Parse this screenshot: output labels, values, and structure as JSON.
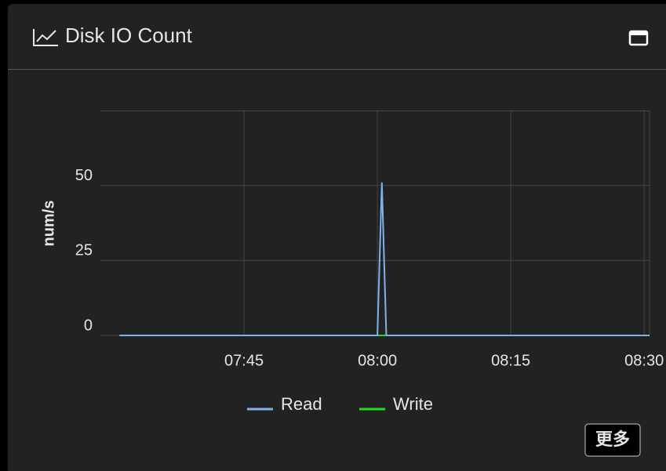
{
  "header": {
    "title": "Disk IO Count"
  },
  "button": {
    "label": "更多"
  },
  "chart_data": {
    "type": "line",
    "ylabel": "num/s",
    "x": [
      451,
      480,
      480.5,
      481,
      510.6
    ],
    "series": [
      {
        "name": "Read",
        "color": "#7eb2e8",
        "values": [
          0,
          0,
          51,
          0,
          0
        ]
      },
      {
        "name": "Write",
        "color": "#22dd22",
        "values": [
          0,
          0,
          0,
          0,
          0
        ]
      }
    ],
    "xlim": [
      448.85,
      510.6
    ],
    "xticks": [
      {
        "value": 465,
        "label": "07:45"
      },
      {
        "value": 480,
        "label": "08:00"
      },
      {
        "value": 495,
        "label": "08:15"
      },
      {
        "value": 510,
        "label": "08:30"
      }
    ],
    "ylim": [
      0,
      75
    ],
    "yticks": [
      0,
      25,
      50
    ],
    "grid": true
  }
}
